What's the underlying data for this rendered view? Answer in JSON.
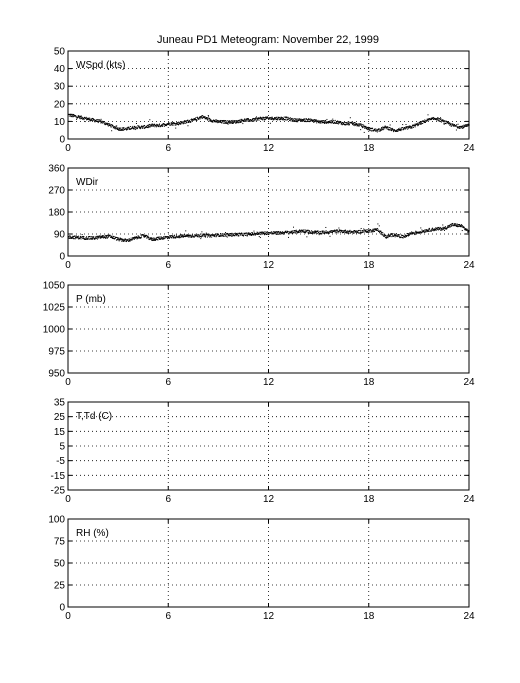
{
  "title": "Juneau PD1 Meteogram:   November 22, 1999",
  "chart_data": [
    {
      "type": "scatter",
      "label": "WSpd (kts)",
      "xlim": [
        0,
        24
      ],
      "ylim": [
        0,
        50
      ],
      "xticks": [
        0,
        6,
        12,
        18,
        24
      ],
      "yticks": [
        0,
        10,
        20,
        30,
        40,
        50
      ],
      "grid": true,
      "series": [
        {
          "x": [
            0,
            0.5,
            1,
            1.5,
            2,
            2.5,
            3,
            3.5,
            4,
            4.5,
            5,
            5.5,
            6,
            6.5,
            7,
            7.5,
            8,
            8.5,
            9,
            9.5,
            10,
            10.5,
            11,
            11.5,
            12,
            12.5,
            13,
            13.5,
            14,
            14.5,
            15,
            15.5,
            16,
            16.5,
            17,
            17.5,
            18,
            18.5,
            19,
            19.5,
            20,
            20.5,
            21,
            21.5,
            22,
            22.5,
            23,
            23.5,
            24
          ],
          "y": [
            14,
            13,
            12,
            11,
            10,
            8,
            6,
            6,
            7,
            7,
            8,
            8,
            9,
            9,
            10,
            11,
            13,
            11,
            10,
            10,
            10,
            11,
            11,
            12,
            12,
            12,
            12,
            11,
            11,
            11,
            10,
            10,
            10,
            9,
            9,
            8,
            6,
            5,
            7,
            5,
            6,
            7,
            9,
            11,
            12,
            10,
            8,
            7,
            8
          ]
        }
      ]
    },
    {
      "type": "scatter",
      "label": "WDir",
      "xlim": [
        0,
        24
      ],
      "ylim": [
        0,
        360
      ],
      "xticks": [
        0,
        6,
        12,
        18,
        24
      ],
      "yticks": [
        0,
        90,
        180,
        270,
        360
      ],
      "grid": true,
      "series": [
        {
          "x": [
            0,
            0.5,
            1,
            1.5,
            2,
            2.5,
            3,
            3.5,
            4,
            4.5,
            5,
            5.5,
            6,
            6.5,
            7,
            7.5,
            8,
            8.5,
            9,
            9.5,
            10,
            10.5,
            11,
            11.5,
            12,
            12.5,
            13,
            13.5,
            14,
            14.5,
            15,
            15.5,
            16,
            16.5,
            17,
            17.5,
            18,
            18.5,
            19,
            19.5,
            20,
            20.5,
            21,
            21.5,
            22,
            22.5,
            23,
            23.5,
            24
          ],
          "y": [
            80,
            78,
            76,
            75,
            80,
            82,
            70,
            65,
            75,
            85,
            70,
            75,
            80,
            82,
            84,
            85,
            86,
            85,
            88,
            88,
            90,
            90,
            92,
            95,
            96,
            96,
            98,
            100,
            105,
            100,
            98,
            100,
            103,
            103,
            100,
            102,
            105,
            110,
            80,
            90,
            80,
            95,
            100,
            108,
            112,
            115,
            130,
            125,
            100
          ]
        }
      ]
    },
    {
      "type": "scatter",
      "label": "P (mb)",
      "xlim": [
        0,
        24
      ],
      "ylim": [
        950,
        1050
      ],
      "xticks": [
        0,
        6,
        12,
        18,
        24
      ],
      "yticks": [
        950,
        975,
        1000,
        1025,
        1050
      ],
      "grid": true,
      "series": []
    },
    {
      "type": "scatter",
      "label": "T,Td (C)",
      "xlim": [
        0,
        24
      ],
      "ylim": [
        -25,
        35
      ],
      "xticks": [
        0,
        6,
        12,
        18,
        24
      ],
      "yticks": [
        -25,
        -15,
        -5,
        5,
        15,
        25,
        35
      ],
      "grid": true,
      "series": []
    },
    {
      "type": "scatter",
      "label": "RH (%)",
      "xlim": [
        0,
        24
      ],
      "ylim": [
        0,
        100
      ],
      "xticks": [
        0,
        6,
        12,
        18,
        24
      ],
      "yticks": [
        0,
        25,
        50,
        75,
        100
      ],
      "grid": true,
      "series": []
    }
  ]
}
